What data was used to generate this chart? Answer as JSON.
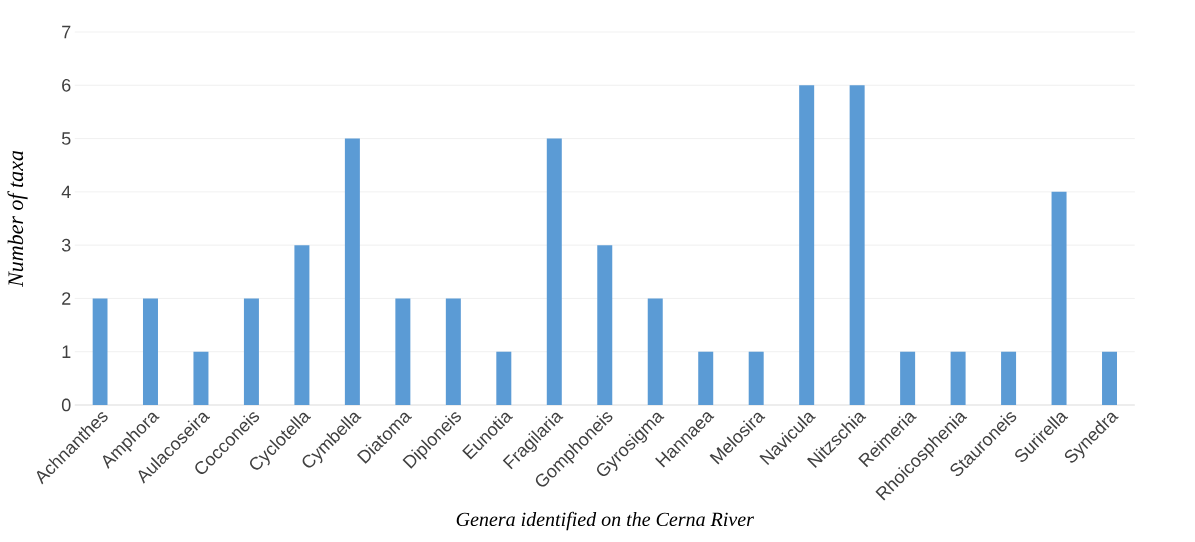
{
  "chart_data": {
    "type": "bar",
    "xlabel": "Genera identified on the Cerna River",
    "ylabel": "Number of taxa",
    "categories": [
      "Achnanthes",
      "Amphora",
      "Aulacoseira",
      "Cocconeis",
      "Cyclotella",
      "Cymbella",
      "Diatoma",
      "Diploneis",
      "Eunotia",
      "Fragilaria",
      "Gomphoneis",
      "Gyrosigma",
      "Hannaea",
      "Melosira",
      "Navicula",
      "Nitzschia",
      "Reimeria",
      "Rhoicosphenia",
      "Stauroneis",
      "Surirella",
      "Synedra"
    ],
    "values": [
      2,
      2,
      1,
      2,
      3,
      5,
      2,
      2,
      1,
      5,
      3,
      2,
      1,
      1,
      6,
      6,
      1,
      1,
      1,
      4,
      1
    ],
    "color": "#5b9bd5",
    "ylim": [
      0,
      7
    ],
    "yticks": [
      0,
      1,
      2,
      3,
      4,
      5,
      6,
      7
    ],
    "grid": "y"
  }
}
